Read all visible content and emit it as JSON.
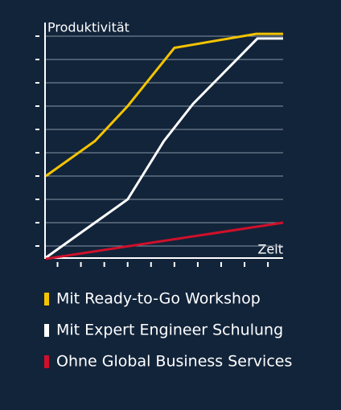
{
  "chart_data": {
    "type": "line",
    "x_label": "Zeit",
    "y_label": "Produktivität",
    "xlim": [
      0.5,
      10.65
    ],
    "ylim": [
      0.5,
      10.2
    ],
    "xticks": [
      1,
      2,
      3,
      4,
      5,
      6,
      7,
      8,
      9,
      10
    ],
    "yticks": [
      1,
      2,
      3,
      4,
      5,
      6,
      7,
      8,
      9,
      10
    ],
    "grid": true,
    "series": [
      {
        "name": "Mit Ready-to-Go Workshop",
        "color": "#f5c400",
        "x": [
          0.5,
          2.6,
          4.0,
          6.0,
          9.5,
          10.65
        ],
        "values": [
          4.0,
          5.5,
          7.0,
          9.5,
          10.1,
          10.1
        ]
      },
      {
        "name": "Mit Expert Engineer Schulung",
        "color": "#ffffff",
        "x": [
          0.5,
          4.0,
          5.55,
          6.8,
          9.55,
          10.65
        ],
        "values": [
          0.5,
          3.0,
          5.5,
          7.1,
          9.9,
          9.9
        ]
      },
      {
        "name": "Ohne Global Business Services",
        "color": "#d0102a",
        "x": [
          0.5,
          10.65
        ],
        "values": [
          0.45,
          2.0
        ]
      }
    ]
  }
}
